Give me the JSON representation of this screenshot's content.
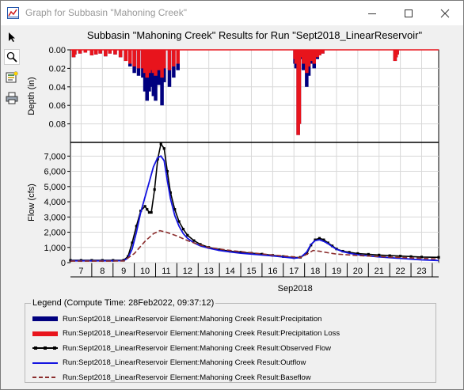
{
  "window": {
    "title": "Graph for Subbasin \"Mahoning Creek\"",
    "controls": [
      "minimize",
      "maximize",
      "close"
    ]
  },
  "toolbar": {
    "tools": [
      "pointer-icon",
      "zoom-icon",
      "properties-icon",
      "print-icon"
    ],
    "active_tool": "zoom-icon"
  },
  "legend": {
    "title": "Legend (Compute Time: 28Feb2022, 09:37:12)",
    "items": [
      {
        "label": "Run:Sept2018_LinearReservoir Element:Mahoning Creek Result:Precipitation",
        "color": "#00007f",
        "style": "thick"
      },
      {
        "label": "Run:Sept2018_LinearReservoir Element:Mahoning Creek Result:Precipitation Loss",
        "color": "#e8141c",
        "style": "thick"
      },
      {
        "label": "Run:Sept2018_LinearReservoir Element:Mahoning Creek Result:Observed Flow",
        "color": "#000000",
        "style": "marker"
      },
      {
        "label": "Run:Sept2018_LinearReservoir Element:Mahoning Creek Result:Outflow",
        "color": "#1414e0",
        "style": "solid"
      },
      {
        "label": "Run:Sept2018_LinearReservoir Element:Mahoning Creek Result:Baseflow",
        "color": "#8b2d2d",
        "style": "dashed"
      }
    ]
  },
  "chart_data": [
    {
      "type": "bar",
      "title": "Subbasin \"Mahoning Creek\" Results for Run \"Sept2018_LinearReservoir\"",
      "ylabel": "Depth (in)",
      "y_inverted": true,
      "ylim": [
        0,
        0.1
      ],
      "yticks": [
        0.0,
        0.02,
        0.04,
        0.06,
        0.08
      ],
      "ytick_labels": [
        "0.00",
        "0.02",
        "0.04",
        "0.06",
        "0.08"
      ],
      "xlim": [
        6.5,
        23.8
      ],
      "grid": true,
      "series": [
        {
          "name": "Precipitation",
          "color": "#00007f",
          "x": [
            6.65,
            6.7,
            6.95,
            7.2,
            7.5,
            7.7,
            7.9,
            8.15,
            8.35,
            8.6,
            8.85,
            9.1,
            9.3,
            9.5,
            9.7,
            9.9,
            10.0,
            10.1,
            10.2,
            10.3,
            10.4,
            10.5,
            10.65,
            10.8,
            10.9,
            11.15,
            11.35,
            11.55,
            17.05,
            17.1,
            17.15,
            17.2,
            17.25,
            17.35,
            17.45,
            17.55,
            17.6,
            17.7,
            17.85,
            17.95,
            18.1,
            18.2,
            18.35,
            21.75,
            21.8,
            21.85
          ],
          "values": [
            0.008,
            0.005,
            0.004,
            0.003,
            0.006,
            0.005,
            0.004,
            0.007,
            0.004,
            0.005,
            0.008,
            0.012,
            0.018,
            0.025,
            0.028,
            0.03,
            0.045,
            0.055,
            0.045,
            0.04,
            0.05,
            0.055,
            0.038,
            0.06,
            0.035,
            0.04,
            0.03,
            0.022,
            0.015,
            0.02,
            0.013,
            0.092,
            0.08,
            0.01,
            0.022,
            0.015,
            0.04,
            0.028,
            0.015,
            0.02,
            0.01,
            0.006,
            0.004,
            0.012,
            0.008,
            0.005
          ]
        },
        {
          "name": "Precipitation Loss",
          "color": "#e8141c",
          "x": [
            6.65,
            6.7,
            6.95,
            7.2,
            7.5,
            7.7,
            7.9,
            8.15,
            8.35,
            8.6,
            8.85,
            9.1,
            9.3,
            9.5,
            9.7,
            9.9,
            10.0,
            10.1,
            10.2,
            10.3,
            10.4,
            10.5,
            10.65,
            10.8,
            10.9,
            11.15,
            11.35,
            11.55,
            17.05,
            17.1,
            17.15,
            17.2,
            17.25,
            17.35,
            17.45,
            17.55,
            17.6,
            17.7,
            17.85,
            17.95,
            18.1,
            18.2,
            18.35,
            21.75,
            21.8,
            21.85
          ],
          "values": [
            0.008,
            0.005,
            0.004,
            0.003,
            0.006,
            0.005,
            0.004,
            0.007,
            0.004,
            0.005,
            0.008,
            0.012,
            0.015,
            0.018,
            0.02,
            0.02,
            0.025,
            0.03,
            0.025,
            0.022,
            0.025,
            0.028,
            0.022,
            0.03,
            0.02,
            0.022,
            0.018,
            0.015,
            0.01,
            0.015,
            0.012,
            0.092,
            0.08,
            0.008,
            0.015,
            0.012,
            0.025,
            0.018,
            0.012,
            0.015,
            0.008,
            0.006,
            0.004,
            0.012,
            0.008,
            0.005
          ]
        }
      ]
    },
    {
      "type": "line",
      "ylabel": "Flow (cfs)",
      "xlabel": "Sep2018",
      "ylim": [
        0,
        7900
      ],
      "yticks": [
        0,
        1000,
        2000,
        3000,
        4000,
        5000,
        6000,
        7000
      ],
      "ytick_labels": [
        "0",
        "1,000",
        "2,000",
        "3,000",
        "4,000",
        "5,000",
        "6,000",
        "7,000"
      ],
      "xlim": [
        6.5,
        23.8
      ],
      "xticks": [
        7,
        8,
        9,
        10,
        11,
        12,
        13,
        14,
        15,
        16,
        17,
        18,
        19,
        20,
        21,
        22,
        23
      ],
      "xtick_labels": [
        "7",
        "8",
        "9",
        "10",
        "11",
        "12",
        "13",
        "14",
        "15",
        "16",
        "17",
        "18",
        "19",
        "20",
        "21",
        "22",
        "23"
      ],
      "grid": true,
      "series": [
        {
          "name": "Observed Flow",
          "color": "#000000",
          "style": "line-markers",
          "x": [
            6.5,
            7,
            7.5,
            8,
            8.5,
            9,
            9.2,
            9.4,
            9.6,
            9.8,
            10.0,
            10.1,
            10.2,
            10.3,
            10.45,
            10.6,
            10.75,
            10.9,
            11.05,
            11.2,
            11.4,
            11.6,
            11.8,
            12.0,
            12.3,
            12.6,
            13.0,
            13.5,
            14,
            14.5,
            15,
            15.5,
            16,
            16.5,
            17,
            17.3,
            17.6,
            17.8,
            18.0,
            18.2,
            18.4,
            18.6,
            18.8,
            19.0,
            19.3,
            19.6,
            20,
            20.5,
            21,
            21.5,
            22,
            22.5,
            23,
            23.8
          ],
          "values": [
            150,
            150,
            150,
            150,
            150,
            160,
            400,
            1300,
            2400,
            3400,
            3700,
            3500,
            3300,
            3300,
            4800,
            6800,
            7800,
            7500,
            6000,
            4600,
            3500,
            2700,
            2200,
            1800,
            1450,
            1200,
            1000,
            850,
            750,
            680,
            620,
            560,
            480,
            400,
            330,
            350,
            600,
            1150,
            1500,
            1600,
            1500,
            1300,
            1100,
            900,
            750,
            680,
            600,
            550,
            500,
            460,
            430,
            400,
            370,
            350
          ]
        },
        {
          "name": "Outflow",
          "color": "#1414e0",
          "style": "solid",
          "x": [
            6.5,
            7,
            7.5,
            8,
            8.5,
            9,
            9.2,
            9.4,
            9.6,
            9.8,
            10.0,
            10.2,
            10.4,
            10.6,
            10.75,
            10.9,
            11.05,
            11.2,
            11.4,
            11.6,
            11.8,
            12.0,
            12.3,
            12.6,
            13.0,
            13.5,
            14,
            14.5,
            15,
            15.5,
            16,
            16.5,
            17,
            17.3,
            17.6,
            17.8,
            18.0,
            18.2,
            18.4,
            18.6,
            18.8,
            19.0,
            19.3,
            19.6,
            20,
            20.5,
            21,
            21.5,
            22,
            22.5,
            23,
            23.8
          ],
          "values": [
            120,
            120,
            120,
            120,
            120,
            130,
            300,
            900,
            2000,
            3300,
            4300,
            5300,
            6300,
            6900,
            7000,
            6700,
            5400,
            4200,
            3100,
            2400,
            1900,
            1600,
            1300,
            1100,
            950,
            800,
            700,
            620,
            560,
            500,
            440,
            370,
            290,
            330,
            700,
            1200,
            1450,
            1500,
            1400,
            1250,
            1050,
            880,
            720,
            620,
            520,
            440,
            380,
            330,
            280,
            230,
            180,
            140
          ]
        },
        {
          "name": "Baseflow",
          "color": "#8b2d2d",
          "style": "dashed",
          "x": [
            6.5,
            7,
            8,
            9,
            9.5,
            10.0,
            10.4,
            10.7,
            11.0,
            11.5,
            12.0,
            12.5,
            13,
            14,
            15,
            16,
            17,
            17.3,
            17.6,
            17.9,
            18.2,
            18.6,
            19,
            20,
            21,
            22,
            23,
            23.8
          ],
          "values": [
            100,
            100,
            100,
            110,
            600,
            1400,
            1900,
            2100,
            2000,
            1750,
            1450,
            1200,
            1000,
            800,
            650,
            500,
            380,
            330,
            550,
            800,
            750,
            650,
            560,
            470,
            400,
            340,
            280,
            240
          ]
        }
      ]
    }
  ]
}
